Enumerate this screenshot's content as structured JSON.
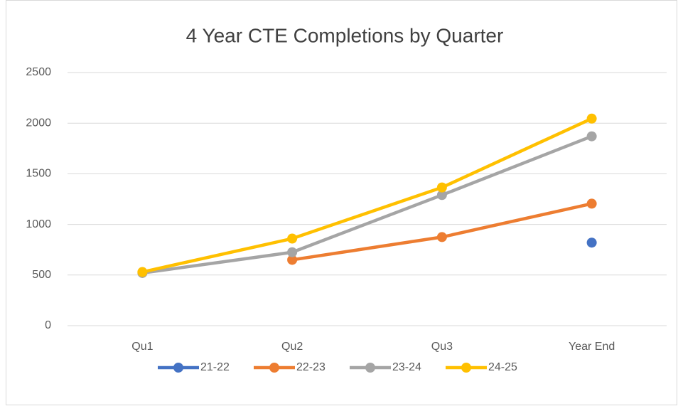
{
  "chart_data": {
    "type": "line",
    "title": "4 Year CTE Completions by Quarter",
    "categories": [
      "Qu1",
      "Qu2",
      "Qu3",
      "Year End"
    ],
    "series": [
      {
        "name": "21-22",
        "color": "#4472c4",
        "values": [
          null,
          null,
          null,
          820
        ]
      },
      {
        "name": "22-23",
        "color": "#ed7d31",
        "values": [
          null,
          650,
          875,
          1205
        ]
      },
      {
        "name": "23-24",
        "color": "#a5a5a5",
        "values": [
          520,
          725,
          1290,
          1870
        ]
      },
      {
        "name": "24-25",
        "color": "#ffc000",
        "values": [
          530,
          860,
          1365,
          2045
        ]
      }
    ],
    "ylim": [
      0,
      2500
    ],
    "yticks": [
      0,
      500,
      1000,
      1500,
      2000,
      2500
    ],
    "grid": true,
    "legend": "bottom"
  }
}
